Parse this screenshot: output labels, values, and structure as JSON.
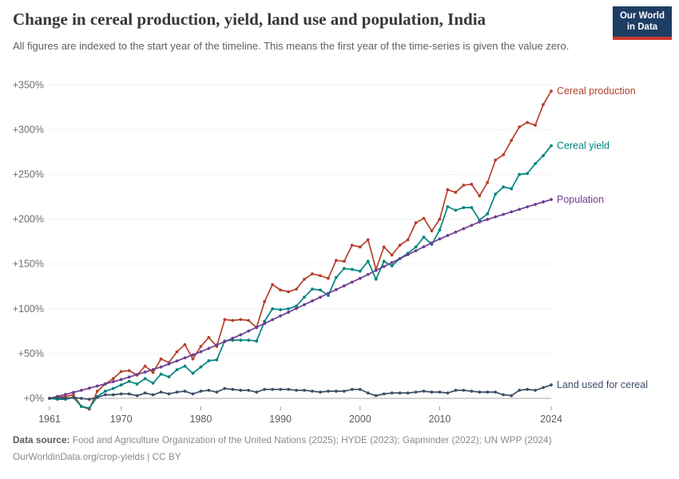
{
  "header": {
    "title": "Change in cereal production, yield, land use and population, India",
    "subtitle": "All figures are indexed to the start year of the timeline. This means the first year of the time-series is given the value zero.",
    "logo": {
      "line1": "Our World",
      "line2": "in Data"
    }
  },
  "footer": {
    "datasource_label": "Data source:",
    "datasource_text": " Food and Agriculture Organization of the United Nations (2025); HYDE (2023); Gapminder (2022); UN WPP (2024)",
    "license_line": "OurWorldinData.org/crop-yields | CC BY"
  },
  "colors": {
    "production": "#b5402b",
    "yield": "#00847e",
    "population": "#6d3e91",
    "land": "#3d4e66",
    "gridline": "#e0e0e0",
    "zero_line": "#a8a8a8",
    "axis_label": "#6e6e6e",
    "logo_bg": "#1d3d63",
    "logo_stripe": "#cc3b2c"
  },
  "chart_data": {
    "type": "line",
    "title": "Change in cereal production, yield, land use and population, India",
    "xlabel": "",
    "ylabel": "",
    "ylim": [
      -20,
      360
    ],
    "xlim": [
      1961,
      2024
    ],
    "grid": "dashed-horizontal",
    "legend_position": "right-end-of-line-labels",
    "unit": "percent change since 1961",
    "yticks": [
      {
        "value": 0,
        "label": "+0%"
      },
      {
        "value": 50,
        "label": "+50%"
      },
      {
        "value": 100,
        "label": "+100%"
      },
      {
        "value": 150,
        "label": "+150%"
      },
      {
        "value": 200,
        "label": "+200%"
      },
      {
        "value": 250,
        "label": "+250%"
      },
      {
        "value": 300,
        "label": "+300%"
      },
      {
        "value": 350,
        "label": "+350%"
      }
    ],
    "xticks": [
      1961,
      1970,
      1980,
      1990,
      2000,
      2010,
      2024
    ],
    "years": [
      1961,
      1962,
      1963,
      1964,
      1965,
      1966,
      1967,
      1968,
      1969,
      1970,
      1971,
      1972,
      1973,
      1974,
      1975,
      1976,
      1977,
      1978,
      1979,
      1980,
      1981,
      1982,
      1983,
      1984,
      1985,
      1986,
      1987,
      1988,
      1989,
      1990,
      1991,
      1992,
      1993,
      1994,
      1995,
      1996,
      1997,
      1998,
      1999,
      2000,
      2001,
      2002,
      2003,
      2004,
      2005,
      2006,
      2007,
      2008,
      2009,
      2010,
      2011,
      2012,
      2013,
      2014,
      2015,
      2016,
      2017,
      2018,
      2019,
      2020,
      2021,
      2022,
      2023,
      2024
    ],
    "series": [
      {
        "name": "Cereal production",
        "color": "#b5402b",
        "values": [
          0,
          1,
          2,
          4,
          -9,
          -12,
          8,
          16,
          22,
          30,
          31,
          26,
          36,
          29,
          44,
          40,
          52,
          60,
          44,
          58,
          68,
          58,
          88,
          87,
          88,
          87,
          79,
          108,
          127,
          121,
          119,
          122,
          133,
          139,
          137,
          134,
          154,
          153,
          171,
          169,
          177,
          144,
          169,
          160,
          171,
          177,
          196,
          201,
          187,
          200,
          233,
          230,
          238,
          239,
          226,
          241,
          266,
          272,
          288,
          303,
          308,
          305,
          328,
          343
        ]
      },
      {
        "name": "Cereal yield",
        "color": "#00847e",
        "values": [
          0,
          -1,
          -1,
          1,
          -9,
          -11,
          2,
          8,
          11,
          15,
          19,
          16,
          22,
          17,
          27,
          24,
          32,
          36,
          28,
          35,
          42,
          43,
          64,
          65,
          65,
          65,
          64,
          86,
          100,
          99,
          100,
          103,
          113,
          122,
          121,
          115,
          135,
          145,
          144,
          142,
          153,
          133,
          153,
          148,
          156,
          162,
          169,
          180,
          172,
          188,
          214,
          210,
          213,
          213,
          199,
          206,
          228,
          236,
          234,
          250,
          251,
          262,
          271,
          282
        ]
      },
      {
        "name": "Population",
        "color": "#6d3e91",
        "values": [
          0,
          2.2,
          4.4,
          6.7,
          9,
          11.4,
          13.8,
          16.2,
          18.6,
          21,
          23.8,
          26.6,
          29.4,
          32.2,
          35,
          38.4,
          41.8,
          45.2,
          48.6,
          52,
          55.8,
          59.6,
          63.4,
          67.2,
          71,
          75.2,
          79.4,
          83.6,
          87.8,
          92,
          96.2,
          100.4,
          104.6,
          108.8,
          113,
          117.2,
          121.4,
          125.6,
          129.8,
          134,
          138.4,
          142.8,
          147.2,
          151.6,
          156,
          160.4,
          164.8,
          169.2,
          173.6,
          178,
          181.8,
          185.6,
          189.4,
          193.2,
          197,
          199.8,
          202.6,
          205.4,
          208.2,
          211,
          213.8,
          216.5,
          219.3,
          222
        ]
      },
      {
        "name": "Land used for cereal",
        "color": "#3d4e66",
        "values": [
          0,
          1,
          0,
          1,
          0,
          -1,
          1,
          4,
          4,
          5,
          5,
          3,
          6,
          4,
          7,
          5,
          7,
          8,
          5,
          8,
          9,
          7,
          11,
          10,
          9,
          9,
          7,
          10,
          10,
          10,
          10,
          9,
          9,
          8,
          7,
          8,
          8,
          8,
          10,
          10,
          6,
          3,
          5,
          6,
          6,
          6,
          7,
          8,
          7,
          7,
          6,
          9,
          9,
          8,
          7,
          7,
          7,
          4,
          3,
          9,
          10,
          9,
          12,
          15
        ]
      }
    ]
  }
}
